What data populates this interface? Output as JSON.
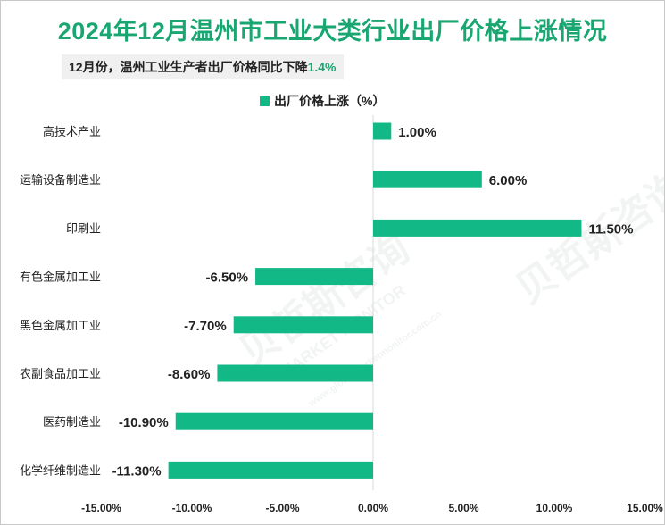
{
  "chart_data": {
    "type": "bar",
    "orientation": "horizontal",
    "title": "2024年12月温州市工业大类行业出厂价格上涨情况",
    "subtitle_prefix": "12月份，温州工业生产者出厂价格同比下降",
    "subtitle_value": "1.4%",
    "legend": "出厂价格上涨（%）",
    "categories": [
      "高技术产业",
      "运输设备制造业",
      "印刷业",
      "有色金属加工业",
      "黑色金属加工业",
      "农副食品加工业",
      "医药制造业",
      "化学纤维制造业"
    ],
    "values": [
      1.0,
      6.0,
      11.5,
      -6.5,
      -7.7,
      -8.6,
      -10.9,
      -11.3
    ],
    "value_labels": [
      "1.00%",
      "6.00%",
      "11.50%",
      "-6.50%",
      "-7.70%",
      "-8.60%",
      "-10.90%",
      "-11.30%"
    ],
    "xlim": [
      -15,
      15
    ],
    "xticks": [
      -15,
      -10,
      -5,
      0,
      5,
      10,
      15
    ],
    "xtick_labels": [
      "-15.00%",
      "-10.00%",
      "-5.00%",
      "0.00%",
      "5.00%",
      "10.00%",
      "15.00%"
    ],
    "bar_color": "#12b886"
  },
  "watermark": {
    "brand_cn": "贝哲斯咨询",
    "brand_en": "MARKET MONITOR",
    "site": "www.globalmarketmonitor.com.cn"
  }
}
